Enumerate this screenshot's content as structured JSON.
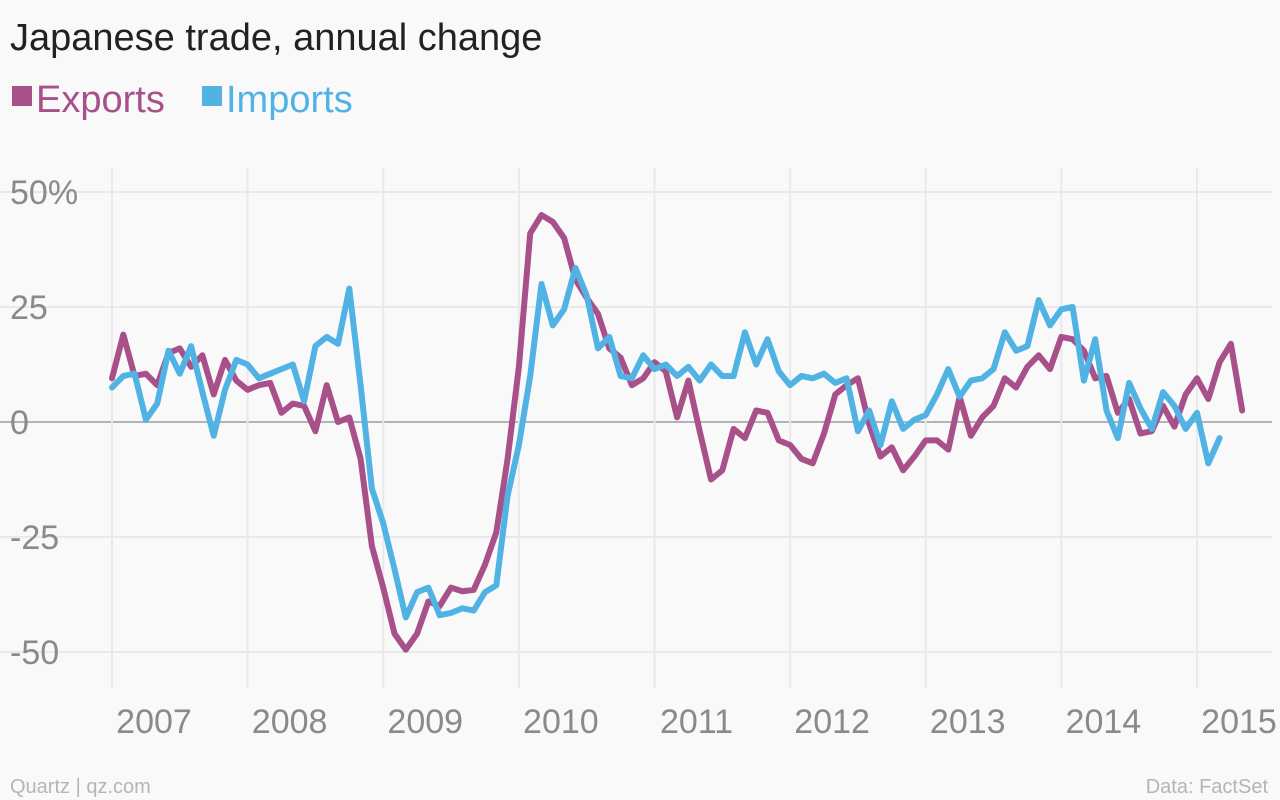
{
  "chart_data": {
    "type": "line",
    "title": "Japanese trade, annual change",
    "y_unit_suffix": "%",
    "ylim": [
      -58,
      52
    ],
    "y_ticks": [
      50,
      25,
      0,
      -25,
      -50
    ],
    "x_range": [
      2006.72,
      2015.55
    ],
    "x_ticks": [
      2007,
      2008,
      2009,
      2010,
      2011,
      2012,
      2013,
      2014,
      2015
    ],
    "x_start": 2007.0,
    "x_step": 0.08333,
    "grid": true,
    "legend_position": "top-left",
    "series": [
      {
        "name": "Exports",
        "color": "#a8508a",
        "values": [
          9.5,
          19,
          10,
          10.5,
          8,
          15,
          16,
          12,
          14.5,
          6,
          13.5,
          9,
          7,
          8,
          8.5,
          2,
          4,
          3.5,
          -2,
          8,
          0,
          1,
          -8,
          -27,
          -36,
          -46,
          -49.5,
          -46,
          -39,
          -40,
          -36,
          -36.8,
          -36.5,
          -31,
          -24,
          -8,
          12,
          41,
          45,
          43.5,
          40,
          31,
          27,
          23.5,
          16,
          14,
          8,
          9.5,
          13,
          11,
          1,
          9,
          -2,
          -12.5,
          -10.5,
          -1.5,
          -3.5,
          2.5,
          2,
          -4,
          -5,
          -8,
          -9,
          -2.5,
          6,
          8,
          9.5,
          -0.5,
          -7.5,
          -5.5,
          -10.5,
          -7.5,
          -4,
          -4,
          -6,
          5.5,
          -3,
          1,
          3.5,
          9.5,
          7.5,
          12,
          14.5,
          11.5,
          18.5,
          18,
          15.5,
          9.5,
          10,
          2,
          5,
          -2.5,
          -2,
          3.5,
          -1,
          6,
          9.5,
          5,
          13,
          17,
          2.5
        ]
      },
      {
        "name": "Imports",
        "color": "#51b2e4",
        "values": [
          7.5,
          10,
          10.5,
          0.5,
          4,
          15.5,
          10.5,
          16.5,
          6.5,
          -3,
          7,
          13.5,
          12.5,
          9.5,
          10.5,
          11.5,
          12.5,
          4.5,
          16.5,
          18.5,
          17,
          29,
          8,
          -14.5,
          -22,
          -32,
          -42.5,
          -37,
          -36,
          -42,
          -41.5,
          -40.5,
          -41,
          -37,
          -35.5,
          -16,
          -5,
          10,
          30,
          21,
          24.5,
          33.5,
          27.5,
          16,
          18.5,
          10,
          9.5,
          14.5,
          11.5,
          12.5,
          10,
          12,
          9,
          12.5,
          10,
          10,
          19.5,
          12.5,
          18,
          11,
          8,
          10,
          9.5,
          10.5,
          8.5,
          9.5,
          -2,
          2.5,
          -5,
          4.5,
          -1.5,
          0.5,
          1.5,
          6,
          11.5,
          5.5,
          9,
          9.5,
          11.5,
          19.5,
          15.5,
          16.5,
          26.5,
          21,
          24.5,
          25,
          9,
          18,
          2.5,
          -3.5,
          8.5,
          3,
          -1.5,
          6.5,
          3.5,
          -1.5,
          2,
          -9,
          -3.5
        ]
      }
    ],
    "source": "Data: FactSet",
    "credit": "Quartz | qz.com"
  }
}
